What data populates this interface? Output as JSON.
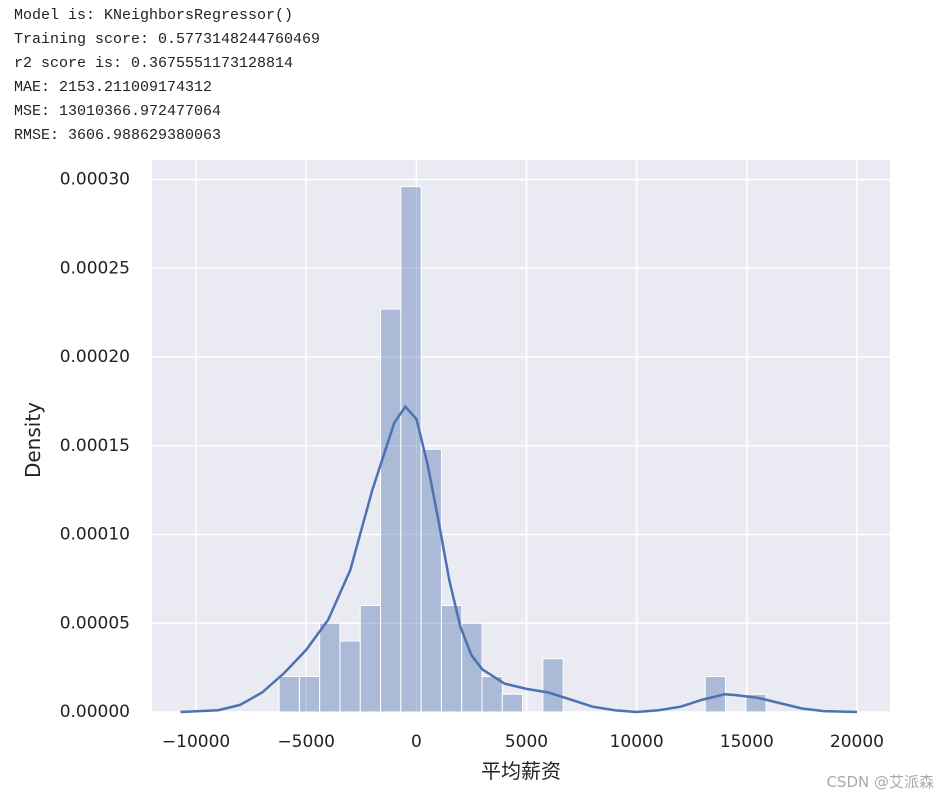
{
  "output_lines": [
    "Model is:  KNeighborsRegressor()",
    "Training score:  0.5773148244760469",
    "r2 score is:  0.3675551173128814",
    "MAE: 2153.211009174312",
    "MSE: 13010366.972477064",
    "RMSE: 3606.988629380063"
  ],
  "watermark": "CSDN @艾派森",
  "chart_data": {
    "type": "histogram",
    "xlabel": "平均薪资",
    "ylabel": "Density",
    "color": "#4c72b0",
    "grid": true,
    "bins": [
      -6230,
      -5309,
      -4388,
      -3467,
      -2546,
      -1625,
      -704,
      217,
      1138,
      2059,
      2980,
      3901,
      4822,
      5743,
      6664,
      7585,
      8506,
      9427,
      10348,
      11269,
      12190,
      13111,
      14032,
      14953,
      15874
    ],
    "values": [
      2e-05,
      2e-05,
      5e-05,
      4e-05,
      6e-05,
      0.000227,
      0.000296,
      0.000148,
      6e-05,
      5e-05,
      2e-05,
      1e-05,
      0,
      3e-05,
      0,
      0,
      0,
      0,
      0,
      0,
      0,
      2e-05,
      0,
      1e-05
    ],
    "kde": {
      "x": [
        -10700,
        -9000,
        -8000,
        -7000,
        -6000,
        -5000,
        -4000,
        -3000,
        -2000,
        -1000,
        -500,
        0,
        500,
        1000,
        1500,
        2000,
        2500,
        3000,
        4000,
        5000,
        6000,
        7000,
        8000,
        9000,
        10000,
        11000,
        12000,
        13000,
        14000,
        14500,
        15500,
        16500,
        17500,
        18500,
        20000
      ],
      "y": [
        0,
        1e-06,
        4e-06,
        1.1e-05,
        2.2e-05,
        3.5e-05,
        5.2e-05,
        8e-05,
        0.000125,
        0.000163,
        0.000172,
        0.000165,
        0.00014,
        0.000108,
        7.4e-05,
        4.8e-05,
        3.2e-05,
        2.4e-05,
        1.6e-05,
        1.3e-05,
        1.1e-05,
        7e-06,
        3e-06,
        1e-06,
        0,
        1e-06,
        3e-06,
        7e-06,
        1e-05,
        9.5e-06,
        8e-06,
        5e-06,
        2e-06,
        5e-07,
        0
      ]
    },
    "xlim": [
      -12000,
      21500
    ],
    "ylim": [
      0,
      0.000311
    ],
    "xticks": [
      {
        "value": -10000,
        "label": "−10000"
      },
      {
        "value": -5000,
        "label": "−5000"
      },
      0,
      5000,
      10000,
      15000,
      20000
    ],
    "yticks": [
      {
        "value": 0,
        "label": "0.00000"
      },
      {
        "value": 5e-05,
        "label": "0.00005"
      },
      {
        "value": 0.0001,
        "label": "0.00010"
      },
      {
        "value": 0.00015,
        "label": "0.00015"
      },
      {
        "value": 0.0002,
        "label": "0.00020"
      },
      {
        "value": 0.00025,
        "label": "0.00025"
      },
      {
        "value": 0.0003,
        "label": "0.00030"
      }
    ]
  }
}
